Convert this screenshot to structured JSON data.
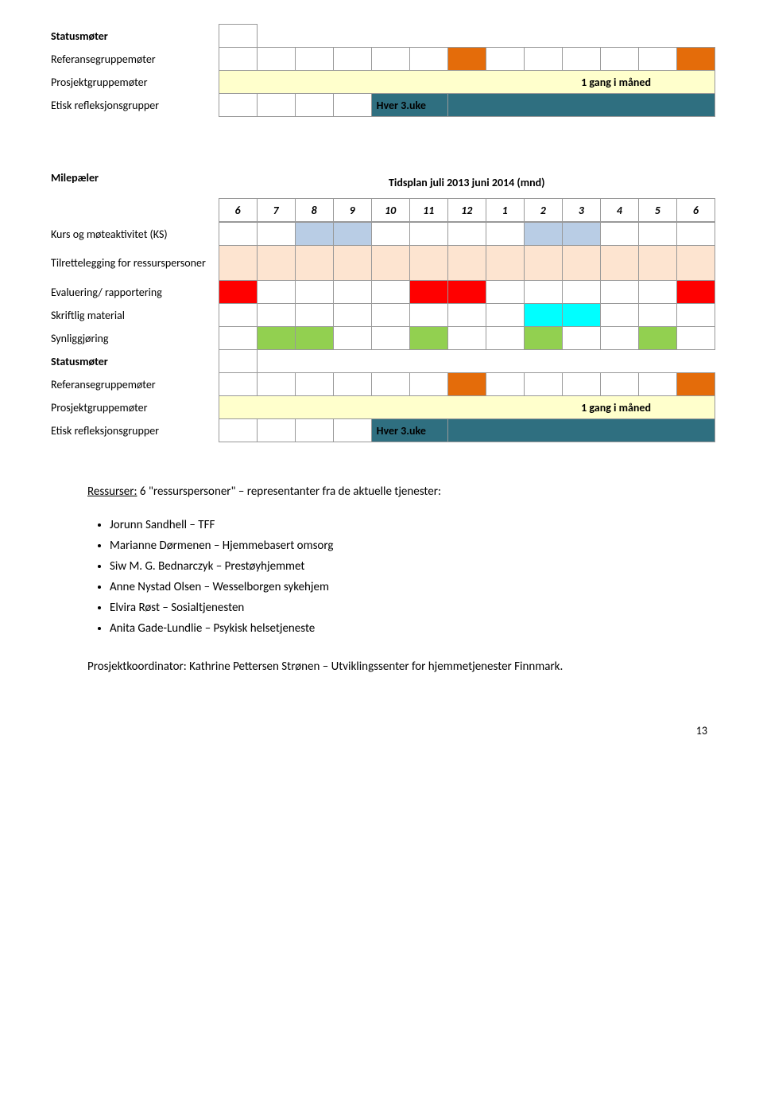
{
  "colors": {
    "orange": "#e46c0a",
    "light_yellow": "#ffffcc",
    "teal": "#2f6f80",
    "pale_blue": "#b9cde5",
    "peach": "#fde4d0",
    "red": "#ff0000",
    "cyan": "#00ffff",
    "lime": "#92d050",
    "white": "#ffffff"
  },
  "table1": {
    "rows": [
      {
        "label": "Statusmøter",
        "label_bold": true,
        "label_indent": true,
        "first_empty_border": true
      },
      {
        "label": "Referansegruppemøter",
        "cells": [
          0,
          0,
          0,
          0,
          0,
          0,
          "orange",
          0,
          0,
          0,
          0,
          0,
          "orange"
        ]
      },
      {
        "label": "Prosjektgruppemøter",
        "full_fill": "light_yellow",
        "full_text_key": "shared.gang_maned"
      },
      {
        "label": "Etisk refleksjonsgrupper",
        "text_fill_start": 5,
        "text_fill_color": "teal",
        "text_key": "shared.hver3uke",
        "rest_fill": "teal"
      }
    ]
  },
  "header2": {
    "milepaeler": "Milepæler",
    "tidsplan": "Tidsplan juli 2013 juni 2014 (mnd)",
    "cols": [
      "6",
      "7",
      "8",
      "9",
      "10",
      "11",
      "12",
      "1",
      "2",
      "3",
      "4",
      "5",
      "6"
    ]
  },
  "table2": {
    "rows": [
      {
        "label": "Kurs og møteaktivitet (KS)",
        "cells": [
          0,
          0,
          "pale_blue",
          "pale_blue",
          0,
          0,
          0,
          0,
          "pale_blue",
          "pale_blue",
          0,
          0,
          0
        ]
      },
      {
        "label": "Tilrettelegging for ressurspersoner",
        "cells": [
          "peach",
          "peach",
          "peach",
          "peach",
          "peach",
          "peach",
          "peach",
          "peach",
          "peach",
          "peach",
          "peach",
          "peach",
          "peach"
        ],
        "tall": true
      },
      {
        "label": "Evaluering/ rapportering",
        "cells": [
          "red",
          0,
          0,
          0,
          0,
          "red",
          "red",
          0,
          0,
          0,
          0,
          0,
          "red"
        ]
      },
      {
        "label": "Skriftlig material",
        "cells": [
          0,
          0,
          0,
          0,
          0,
          0,
          0,
          0,
          "cyan",
          "cyan",
          0,
          0,
          0
        ]
      },
      {
        "label": "Synliggjøring",
        "cells": [
          0,
          "lime",
          "lime",
          0,
          0,
          "lime",
          0,
          0,
          "lime",
          0,
          0,
          "lime",
          0
        ]
      },
      {
        "label": "Statusmøter",
        "label_bold": true,
        "label_indent": true,
        "first_empty_border": true
      },
      {
        "label": "Referansegruppemøter",
        "cells": [
          0,
          0,
          0,
          0,
          0,
          0,
          "orange",
          0,
          0,
          0,
          0,
          0,
          "orange"
        ]
      },
      {
        "label": "Prosjektgruppemøter",
        "full_fill": "light_yellow",
        "full_text_key": "shared.gang_maned"
      },
      {
        "label": "Etisk refleksjonsgrupper",
        "text_fill_start": 5,
        "text_fill_color": "teal",
        "text_key": "shared.hver3uke",
        "rest_fill": "teal"
      }
    ]
  },
  "shared": {
    "gang_maned": "1 gang i måned",
    "hver3uke": "Hver 3.uke"
  },
  "resources": {
    "title_prefix": "Ressurser:",
    "title_rest": " 6 \"ressurspersoner\" – representanter fra de aktuelle tjenester:",
    "items": [
      "Jorunn Sandhell – TFF",
      "Marianne Dørmenen – Hjemmebasert omsorg",
      "Siw M. G. Bednarczyk – Prestøyhjemmet",
      "Anne Nystad Olsen – Wesselborgen sykehjem",
      "Elvira Røst – Sosialtjenesten",
      "Anita Gade-Lundlie – Psykisk helsetjeneste"
    ],
    "coordinator": "Prosjektkoordinator: Kathrine Pettersen Strønen – Utviklingssenter for hjemmetjenester Finnmark."
  },
  "page_number": "13"
}
